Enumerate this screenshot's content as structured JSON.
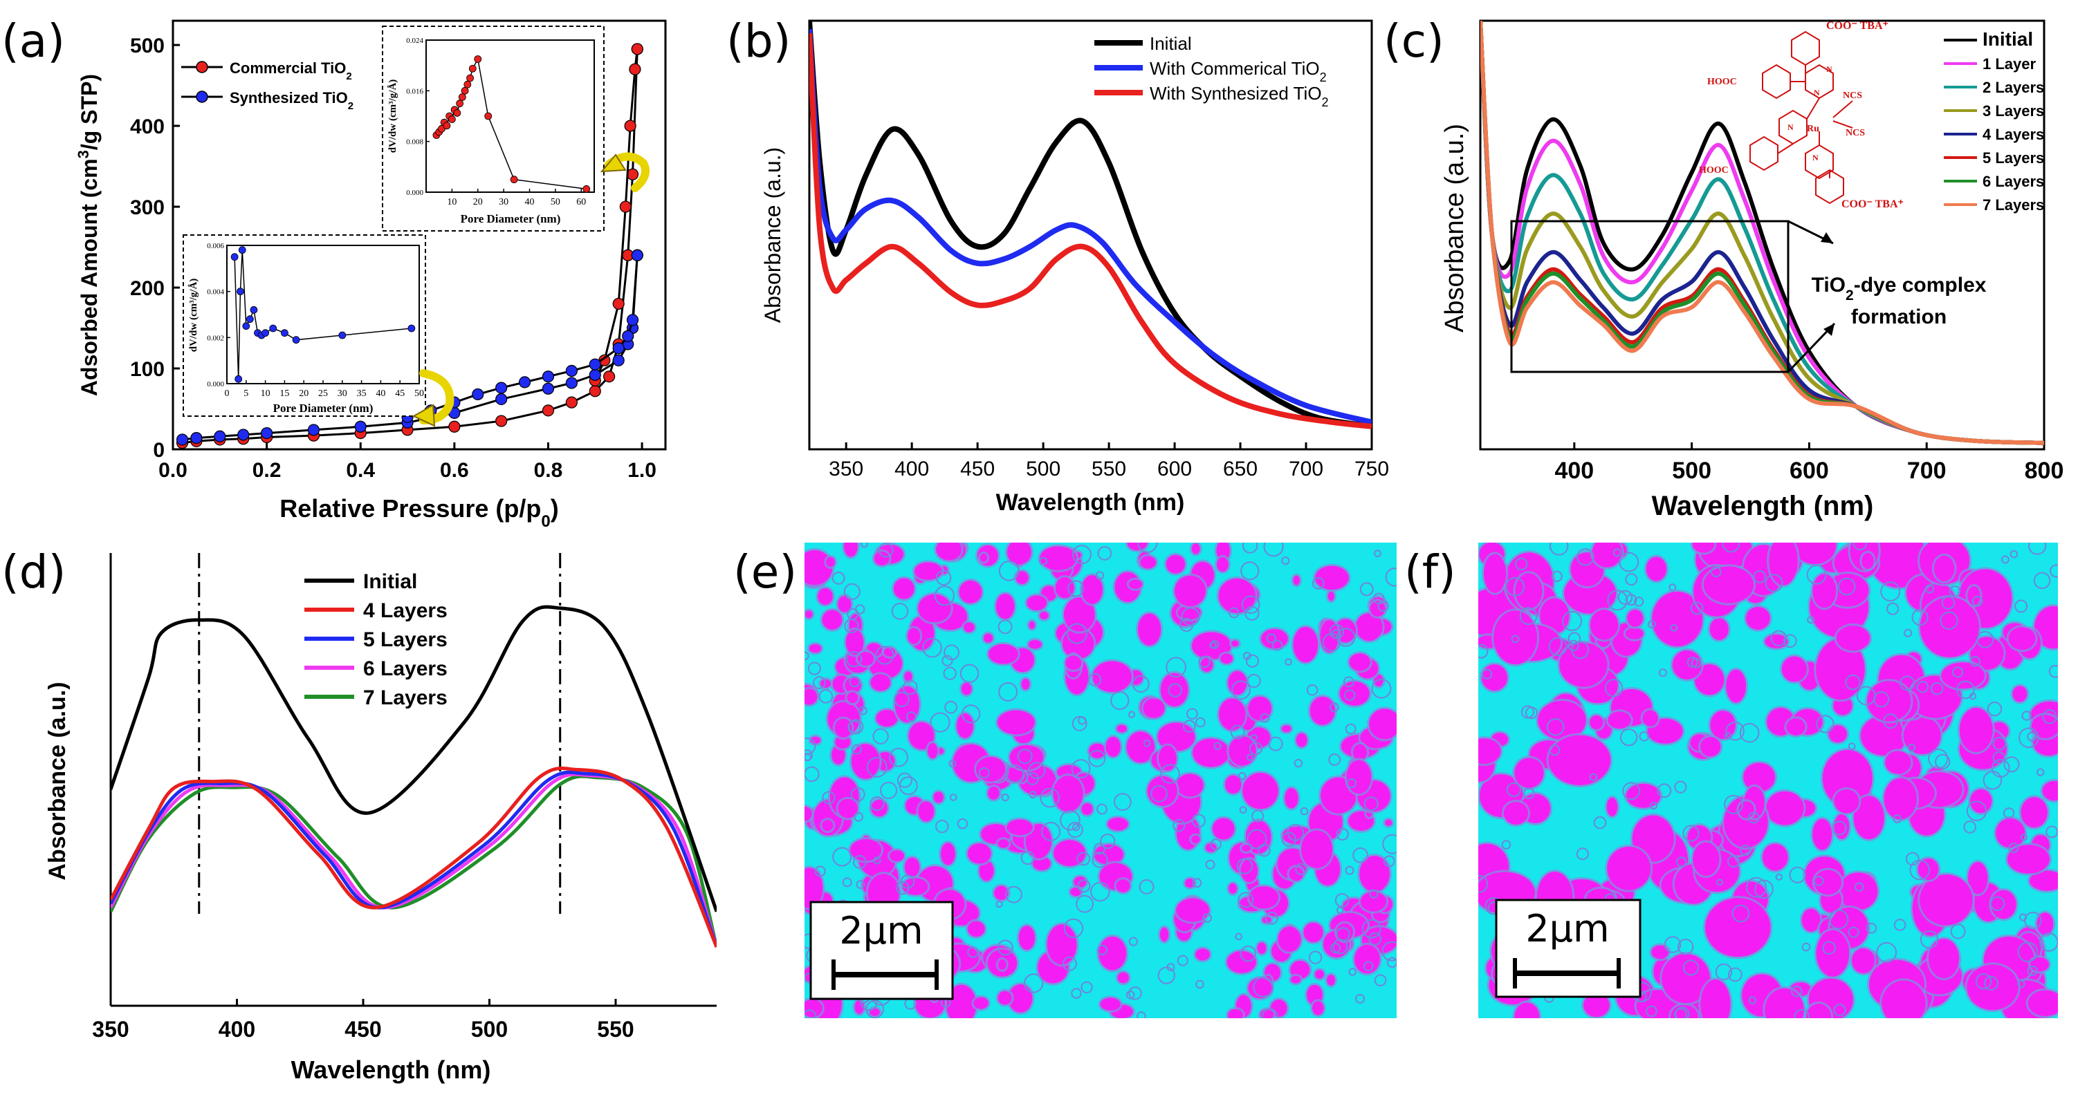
{
  "colors": {
    "black": "#000000",
    "red": "#e8201e",
    "blue": "#1f2bf0",
    "magenta": "#ee3bf0",
    "teal": "#159a94",
    "olive": "#9a9a20",
    "navy": "#1c2490",
    "darkred": "#d21a12",
    "green": "#1f8f28",
    "orange": "#f07a50",
    "cyan": "#15e8ee",
    "pink": "#f41ef4"
  },
  "chart_data": [
    {
      "panel": "a",
      "type": "line",
      "panel_label": "(a)",
      "xlabel": "Relative Pressure (p/p",
      "xlabel_sub": "0",
      "xlabel_close": ")",
      "ylabel": "Adsorbed Amount (cm",
      "ylabel_sup": "3",
      "ylabel_rest": "/g STP)",
      "xlim": [
        0,
        1.05
      ],
      "ylim": [
        0,
        530
      ],
      "xticks": [
        "0.0",
        "0.2",
        "0.4",
        "0.6",
        "0.8",
        "1.0"
      ],
      "xtick_values": [
        0,
        0.2,
        0.4,
        0.6,
        0.8,
        1.0
      ],
      "yticks": [
        "0",
        "100",
        "200",
        "300",
        "400",
        "500"
      ],
      "ytick_values": [
        0,
        100,
        200,
        300,
        400,
        500
      ],
      "legend": [
        {
          "name": "Commercial TiO",
          "sub": "2"
        },
        {
          "name": "Synthesized TiO",
          "sub": "2"
        }
      ],
      "series": [
        {
          "name": "Commercial TiO2 adsorption",
          "color": "red",
          "x": [
            0.02,
            0.05,
            0.1,
            0.15,
            0.2,
            0.3,
            0.4,
            0.5,
            0.6,
            0.7,
            0.8,
            0.85,
            0.9,
            0.93,
            0.95,
            0.97,
            0.98,
            0.99
          ],
          "y": [
            8,
            10,
            12,
            13,
            15,
            17,
            20,
            24,
            28,
            35,
            48,
            58,
            72,
            90,
            130,
            240,
            340,
            495
          ]
        },
        {
          "name": "Commercial TiO2 desorption",
          "color": "red",
          "x": [
            0.99,
            0.985,
            0.975,
            0.965,
            0.95,
            0.92,
            0.9
          ],
          "y": [
            495,
            470,
            400,
            300,
            180,
            110,
            85
          ]
        },
        {
          "name": "Synthesized TiO2 adsorption",
          "color": "blue",
          "x": [
            0.02,
            0.05,
            0.1,
            0.15,
            0.2,
            0.3,
            0.4,
            0.5,
            0.6,
            0.7,
            0.8,
            0.85,
            0.9,
            0.95,
            0.97,
            0.98,
            0.99
          ],
          "y": [
            12,
            14,
            16,
            18,
            20,
            24,
            28,
            33,
            45,
            62,
            75,
            82,
            92,
            110,
            130,
            150,
            240
          ]
        },
        {
          "name": "Synthesized TiO2 desorption",
          "color": "blue",
          "x": [
            0.99,
            0.98,
            0.97,
            0.95,
            0.9,
            0.85,
            0.8,
            0.75,
            0.7,
            0.65,
            0.6,
            0.55,
            0.5
          ],
          "y": [
            240,
            160,
            140,
            125,
            105,
            97,
            90,
            83,
            76,
            68,
            58,
            48,
            40
          ]
        }
      ],
      "inset_top": {
        "xlabel": "Pore Diameter (nm)",
        "ylabel": "dV/dw (cm³/g/Å)",
        "xlim": [
          0,
          65
        ],
        "ylim": [
          0,
          0.024
        ],
        "xticks": [
          "10",
          "20",
          "30",
          "40",
          "50",
          "60"
        ],
        "xtick_values": [
          10,
          20,
          30,
          40,
          50,
          60
        ],
        "yticks": [
          "0.000",
          "0.008",
          "0.016",
          "0.024"
        ],
        "ytick_values": [
          0,
          0.008,
          0.016,
          0.024
        ],
        "x": [
          4,
          5,
          6,
          7,
          8,
          9,
          10,
          11,
          12,
          13,
          14,
          15,
          16,
          17,
          18,
          20,
          24,
          34,
          62
        ],
        "y": [
          0.009,
          0.0095,
          0.01,
          0.011,
          0.0105,
          0.012,
          0.0115,
          0.013,
          0.0125,
          0.014,
          0.015,
          0.016,
          0.017,
          0.018,
          0.0195,
          0.021,
          0.012,
          0.002,
          0.0005
        ]
      },
      "inset_bottom": {
        "xlabel": "Pore Diameter (nm)",
        "ylabel": "dV/dw (cm³/g/Å)",
        "xlim": [
          0,
          50
        ],
        "ylim": [
          0,
          0.006
        ],
        "xticks": [
          "0",
          "5",
          "10",
          "15",
          "20",
          "25",
          "30",
          "35",
          "40",
          "45",
          "50"
        ],
        "xtick_values": [
          0,
          5,
          10,
          15,
          20,
          25,
          30,
          35,
          40,
          45,
          50
        ],
        "yticks": [
          "0.000",
          "0.002",
          "0.004",
          "0.006"
        ],
        "ytick_values": [
          0,
          0.002,
          0.004,
          0.006
        ],
        "x": [
          2,
          3,
          3.5,
          4,
          5,
          6,
          7,
          8,
          9,
          10,
          12,
          15,
          18,
          30,
          48
        ],
        "y": [
          0.0055,
          0.0002,
          0.004,
          0.0058,
          0.0025,
          0.0028,
          0.0032,
          0.0022,
          0.0021,
          0.0022,
          0.0024,
          0.0022,
          0.0019,
          0.0021,
          0.0024
        ]
      }
    },
    {
      "panel": "b",
      "type": "line",
      "panel_label": "(b)",
      "xlabel": "Wavelength (nm)",
      "ylabel": "Absorbance (a.u.)",
      "xlim": [
        322,
        750
      ],
      "ylim": [
        0,
        1
      ],
      "xticks": [
        "350",
        "400",
        "450",
        "500",
        "550",
        "600",
        "650",
        "700",
        "750"
      ],
      "xtick_values": [
        350,
        400,
        450,
        500,
        550,
        600,
        650,
        700,
        750
      ],
      "legend": [
        {
          "name": "Initial"
        },
        {
          "name": "With Commerical TiO",
          "sub": "2"
        },
        {
          "name": "With Synthesized TiO",
          "sub": "2"
        }
      ],
      "series": [
        {
          "name": "Initial",
          "color": "black",
          "x": [
            322,
            330,
            340,
            350,
            365,
            385,
            405,
            430,
            450,
            470,
            490,
            510,
            530,
            550,
            575,
            600,
            625,
            650,
            680,
            710,
            750
          ],
          "y": [
            1.0,
            0.66,
            0.45,
            0.5,
            0.63,
            0.74,
            0.68,
            0.52,
            0.46,
            0.49,
            0.6,
            0.71,
            0.76,
            0.66,
            0.45,
            0.3,
            0.21,
            0.15,
            0.09,
            0.05,
            0.03
          ]
        },
        {
          "name": "With Commerical TiO2",
          "color": "blue",
          "x": [
            322,
            330,
            340,
            350,
            365,
            385,
            405,
            430,
            450,
            470,
            490,
            510,
            525,
            545,
            570,
            600,
            630,
            660,
            700,
            750
          ],
          "y": [
            0.98,
            0.6,
            0.48,
            0.5,
            0.55,
            0.57,
            0.53,
            0.45,
            0.42,
            0.43,
            0.46,
            0.5,
            0.51,
            0.47,
            0.37,
            0.28,
            0.2,
            0.14,
            0.08,
            0.04
          ]
        },
        {
          "name": "With Synthesized TiO2",
          "color": "red",
          "x": [
            322,
            330,
            340,
            350,
            365,
            385,
            405,
            430,
            450,
            470,
            490,
            510,
            530,
            550,
            575,
            600,
            640,
            680,
            720,
            750
          ],
          "y": [
            0.97,
            0.5,
            0.36,
            0.38,
            0.42,
            0.46,
            0.42,
            0.35,
            0.32,
            0.33,
            0.36,
            0.43,
            0.46,
            0.41,
            0.28,
            0.18,
            0.1,
            0.06,
            0.04,
            0.03
          ]
        }
      ]
    },
    {
      "panel": "c",
      "type": "line",
      "panel_label": "(c)",
      "xlabel": "Wavelength (nm)",
      "ylabel": "Absorbance (a.u.)",
      "xlim": [
        320,
        800
      ],
      "ylim": [
        0,
        1
      ],
      "xticks": [
        "400",
        "500",
        "600",
        "700",
        "800"
      ],
      "xtick_values": [
        400,
        500,
        600,
        700,
        800
      ],
      "annotation_line1": "TiO",
      "annotation_sub": "2",
      "annotation_line1_rest": "-dye complex",
      "annotation_line2": "formation",
      "molecule_labels": [
        "COO⁻ TBA⁺",
        "HOOC",
        "N",
        "N",
        "NCS",
        "Ru",
        "NCS",
        "N",
        "HOOC",
        "N",
        "COO⁻ TBA⁺"
      ],
      "series": [
        {
          "name": "Initial",
          "color": "black",
          "peak1": 0.77,
          "valley": 0.42,
          "peak2": 0.76
        },
        {
          "name": "1 Layer",
          "color": "magenta",
          "peak1": 0.72,
          "valley": 0.39,
          "peak2": 0.71
        },
        {
          "name": "2 Layers",
          "color": "teal",
          "peak1": 0.64,
          "valley": 0.35,
          "peak2": 0.63
        },
        {
          "name": "3 Layers",
          "color": "olive",
          "peak1": 0.55,
          "valley": 0.31,
          "peak2": 0.55
        },
        {
          "name": "4 Layers",
          "color": "navy",
          "peak1": 0.46,
          "valley": 0.27,
          "peak2": 0.46
        },
        {
          "name": "5 Layers",
          "color": "darkred",
          "peak1": 0.42,
          "valley": 0.25,
          "peak2": 0.42
        },
        {
          "name": "6 Layers",
          "color": "green",
          "peak1": 0.41,
          "valley": 0.24,
          "peak2": 0.41
        },
        {
          "name": "7 Layers",
          "color": "orange",
          "peak1": 0.39,
          "valley": 0.23,
          "peak2": 0.39
        }
      ]
    },
    {
      "panel": "d",
      "type": "line",
      "panel_label": "(d)",
      "xlabel": "Wavelength (nm)",
      "ylabel": "Absorbance (a.u.)",
      "xlim": [
        350,
        590
      ],
      "ylim": [
        0,
        1
      ],
      "xticks": [
        "350",
        "400",
        "450",
        "500",
        "550"
      ],
      "xtick_values": [
        350,
        400,
        450,
        500,
        550
      ],
      "reference_lines": [
        385,
        528
      ],
      "series": [
        {
          "name": "Initial",
          "color": "black",
          "p1x": 385,
          "p1y": 0.83,
          "vx": 452,
          "vy": 0.34,
          "p2x": 528,
          "p2y": 0.86,
          "start": 0.4,
          "end": 0.09
        },
        {
          "name": "4 Layers",
          "color": "red",
          "p1x": 390,
          "p1y": 0.42,
          "vx": 455,
          "vy": 0.1,
          "p2x": 535,
          "p2y": 0.45,
          "start": 0.12,
          "end": 0.0
        },
        {
          "name": "5 Layers",
          "color": "blue",
          "p1x": 393,
          "p1y": 0.415,
          "vx": 457,
          "vy": 0.1,
          "p2x": 538,
          "p2y": 0.44,
          "start": 0.11,
          "end": 0.0
        },
        {
          "name": "6 Layers",
          "color": "magenta",
          "p1x": 395,
          "p1y": 0.41,
          "vx": 459,
          "vy": 0.1,
          "p2x": 540,
          "p2y": 0.435,
          "start": 0.1,
          "end": 0.0
        },
        {
          "name": "7 Layers",
          "color": "green",
          "p1x": 398,
          "p1y": 0.405,
          "vx": 462,
          "vy": 0.1,
          "p2x": 543,
          "p2y": 0.43,
          "start": 0.09,
          "end": 0.0
        }
      ]
    }
  ],
  "panels_images": [
    {
      "panel": "e",
      "panel_label": "(e)",
      "scale_label": "2μm"
    },
    {
      "panel": "f",
      "panel_label": "(f)",
      "scale_label": "2μm"
    }
  ]
}
